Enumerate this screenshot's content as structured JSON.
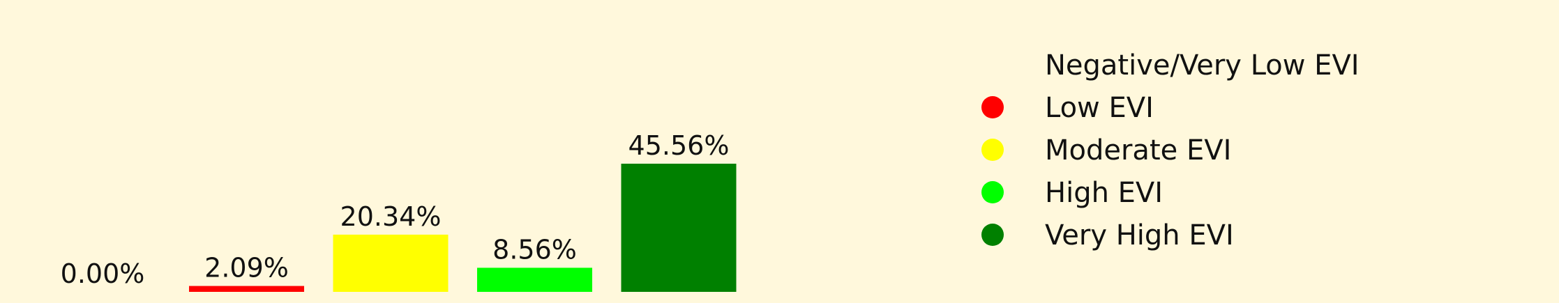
{
  "chart_data": {
    "type": "bar",
    "categories": [
      "Negative/Very Low EVI",
      "Low EVI",
      "Moderate EVI",
      "High EVI",
      "Very High EVI"
    ],
    "values": [
      0.0,
      2.09,
      20.34,
      8.56,
      45.56
    ],
    "value_labels": [
      "0.00%",
      "2.09%",
      "20.34%",
      "8.56%",
      "45.56%"
    ],
    "colors": [
      "#fff8dc",
      "#ff0000",
      "#ffff00",
      "#00ff00",
      "#008000"
    ],
    "legend": [
      {
        "label": "Negative/Very Low EVI",
        "color": "#fff8dc"
      },
      {
        "label": "Low EVI",
        "color": "#ff0000"
      },
      {
        "label": "Moderate EVI",
        "color": "#ffff00"
      },
      {
        "label": "High EVI",
        "color": "#00ff00"
      },
      {
        "label": "Very High EVI",
        "color": "#008000"
      }
    ],
    "title": "",
    "xlabel": "",
    "ylabel": "",
    "ylim": [
      0,
      45.56
    ],
    "grid": false,
    "legend_position": "right",
    "background": "#fff8dc"
  }
}
